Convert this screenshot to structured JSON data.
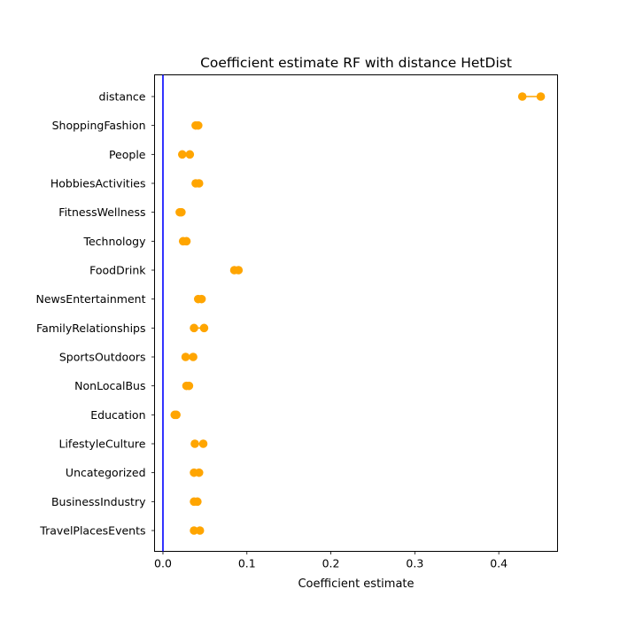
{
  "chart_data": {
    "type": "dumbbell",
    "title": "Coefficient estimate RF  with distance HetDist",
    "xlabel": "Coefficient estimate",
    "ylabel": "",
    "xlim": [
      -0.01,
      0.47
    ],
    "xticks": [
      0.0,
      0.1,
      0.2,
      0.3,
      0.4
    ],
    "xtick_labels": [
      "0.0",
      "0.1",
      "0.2",
      "0.3",
      "0.4"
    ],
    "reference_line": {
      "x": 0.0,
      "color": "#0000ff"
    },
    "marker_color": "#ffa500",
    "grid": false,
    "categories": [
      "distance",
      "ShoppingFashion",
      "People",
      "HobbiesActivities",
      "FitnessWellness",
      "Technology",
      "FoodDrink",
      "NewsEntertainment",
      "FamilyRelationships",
      "SportsOutdoors",
      "NonLocalBus",
      "Education",
      "LifestyleCulture",
      "Uncategorized",
      "BusinessIndustry",
      "TravelPlacesEvents"
    ],
    "ranges": [
      [
        0.428,
        0.45
      ],
      [
        0.039,
        0.042
      ],
      [
        0.023,
        0.032
      ],
      [
        0.039,
        0.043
      ],
      [
        0.02,
        0.022
      ],
      [
        0.024,
        0.028
      ],
      [
        0.085,
        0.09
      ],
      [
        0.042,
        0.046
      ],
      [
        0.037,
        0.049
      ],
      [
        0.027,
        0.036
      ],
      [
        0.028,
        0.031
      ],
      [
        0.014,
        0.016
      ],
      [
        0.038,
        0.048
      ],
      [
        0.037,
        0.043
      ],
      [
        0.037,
        0.041
      ],
      [
        0.037,
        0.044
      ]
    ]
  }
}
